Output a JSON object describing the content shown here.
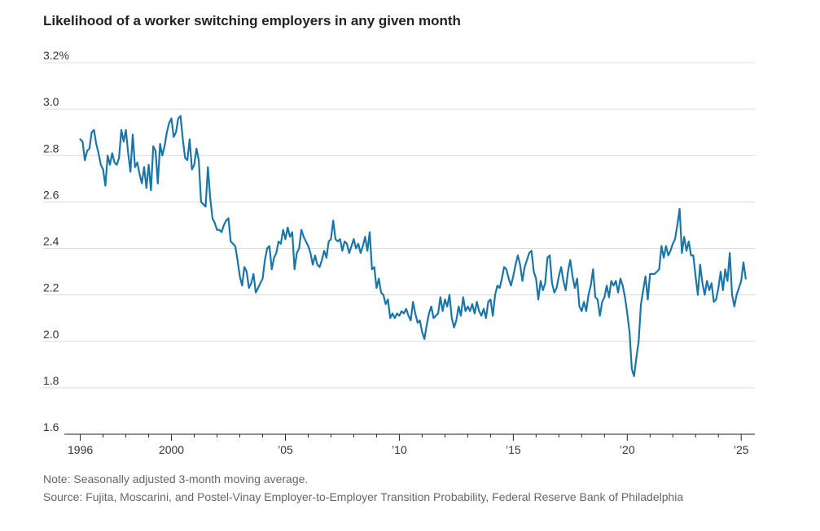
{
  "chart_data": {
    "type": "line",
    "title": "Likelihood of a worker switching employers in any given month",
    "xlabel": "",
    "ylabel": "",
    "ylim": [
      1.6,
      3.2
    ],
    "xlim": [
      1995.8,
      2025.6
    ],
    "grid": true,
    "legend": "none",
    "y_ticks": [
      {
        "value": 3.2,
        "label": "3.2%"
      },
      {
        "value": 3.0,
        "label": "3.0"
      },
      {
        "value": 2.8,
        "label": "2.8"
      },
      {
        "value": 2.6,
        "label": "2.6"
      },
      {
        "value": 2.4,
        "label": "2.4"
      },
      {
        "value": 2.2,
        "label": "2.2"
      },
      {
        "value": 2.0,
        "label": "2.0"
      },
      {
        "value": 1.8,
        "label": "1.8"
      },
      {
        "value": 1.6,
        "label": "1.6"
      }
    ],
    "x_ticks": [
      {
        "value": 1996,
        "label": "1996"
      },
      {
        "value": 2000,
        "label": "2000"
      },
      {
        "value": 2005,
        "label": "’05"
      },
      {
        "value": 2010,
        "label": "’10"
      },
      {
        "value": 2015,
        "label": "’15"
      },
      {
        "value": 2020,
        "label": "’20"
      },
      {
        "value": 2025,
        "label": "’25"
      }
    ],
    "series": [
      {
        "color": "#1a75a8",
        "points": [
          [
            1996.0,
            2.87
          ],
          [
            1996.1,
            2.86
          ],
          [
            1996.2,
            2.78
          ],
          [
            1996.3,
            2.82
          ],
          [
            1996.4,
            2.83
          ],
          [
            1996.5,
            2.9
          ],
          [
            1996.6,
            2.91
          ],
          [
            1996.7,
            2.85
          ],
          [
            1996.8,
            2.81
          ],
          [
            1996.9,
            2.76
          ],
          [
            1997.0,
            2.74
          ],
          [
            1997.1,
            2.67
          ],
          [
            1997.2,
            2.8
          ],
          [
            1997.3,
            2.76
          ],
          [
            1997.4,
            2.81
          ],
          [
            1997.5,
            2.77
          ],
          [
            1997.6,
            2.76
          ],
          [
            1997.7,
            2.79
          ],
          [
            1997.8,
            2.91
          ],
          [
            1997.9,
            2.86
          ],
          [
            1998.0,
            2.91
          ],
          [
            1998.1,
            2.81
          ],
          [
            1998.2,
            2.73
          ],
          [
            1998.3,
            2.89
          ],
          [
            1998.4,
            2.75
          ],
          [
            1998.5,
            2.77
          ],
          [
            1998.6,
            2.72
          ],
          [
            1998.7,
            2.68
          ],
          [
            1998.8,
            2.75
          ],
          [
            1998.9,
            2.66
          ],
          [
            1999.0,
            2.76
          ],
          [
            1999.1,
            2.65
          ],
          [
            1999.2,
            2.84
          ],
          [
            1999.3,
            2.82
          ],
          [
            1999.4,
            2.68
          ],
          [
            1999.5,
            2.85
          ],
          [
            1999.6,
            2.8
          ],
          [
            1999.7,
            2.84
          ],
          [
            1999.8,
            2.9
          ],
          [
            1999.9,
            2.94
          ],
          [
            2000.0,
            2.96
          ],
          [
            2000.1,
            2.88
          ],
          [
            2000.2,
            2.9
          ],
          [
            2000.3,
            2.96
          ],
          [
            2000.4,
            2.97
          ],
          [
            2000.5,
            2.87
          ],
          [
            2000.6,
            2.79
          ],
          [
            2000.7,
            2.78
          ],
          [
            2000.8,
            2.87
          ],
          [
            2000.9,
            2.74
          ],
          [
            2001.0,
            2.76
          ],
          [
            2001.1,
            2.83
          ],
          [
            2001.2,
            2.78
          ],
          [
            2001.3,
            2.6
          ],
          [
            2001.4,
            2.59
          ],
          [
            2001.5,
            2.58
          ],
          [
            2001.6,
            2.75
          ],
          [
            2001.7,
            2.62
          ],
          [
            2001.8,
            2.53
          ],
          [
            2001.9,
            2.51
          ],
          [
            2002.0,
            2.48
          ],
          [
            2002.1,
            2.48
          ],
          [
            2002.2,
            2.47
          ],
          [
            2002.3,
            2.5
          ],
          [
            2002.4,
            2.52
          ],
          [
            2002.5,
            2.53
          ],
          [
            2002.6,
            2.43
          ],
          [
            2002.7,
            2.42
          ],
          [
            2002.8,
            2.41
          ],
          [
            2002.9,
            2.35
          ],
          [
            2003.0,
            2.28
          ],
          [
            2003.1,
            2.24
          ],
          [
            2003.2,
            2.32
          ],
          [
            2003.3,
            2.3
          ],
          [
            2003.4,
            2.23
          ],
          [
            2003.5,
            2.25
          ],
          [
            2003.6,
            2.29
          ],
          [
            2003.7,
            2.21
          ],
          [
            2003.8,
            2.23
          ],
          [
            2003.9,
            2.25
          ],
          [
            2004.0,
            2.27
          ],
          [
            2004.1,
            2.35
          ],
          [
            2004.2,
            2.4
          ],
          [
            2004.3,
            2.41
          ],
          [
            2004.4,
            2.31
          ],
          [
            2004.5,
            2.36
          ],
          [
            2004.6,
            2.38
          ],
          [
            2004.7,
            2.43
          ],
          [
            2004.8,
            2.42
          ],
          [
            2004.9,
            2.48
          ],
          [
            2005.0,
            2.44
          ],
          [
            2005.1,
            2.49
          ],
          [
            2005.2,
            2.45
          ],
          [
            2005.3,
            2.47
          ],
          [
            2005.4,
            2.31
          ],
          [
            2005.5,
            2.38
          ],
          [
            2005.6,
            2.4
          ],
          [
            2005.7,
            2.48
          ],
          [
            2005.8,
            2.45
          ],
          [
            2005.9,
            2.43
          ],
          [
            2006.0,
            2.41
          ],
          [
            2006.1,
            2.38
          ],
          [
            2006.2,
            2.33
          ],
          [
            2006.3,
            2.37
          ],
          [
            2006.4,
            2.33
          ],
          [
            2006.5,
            2.32
          ],
          [
            2006.6,
            2.35
          ],
          [
            2006.7,
            2.39
          ],
          [
            2006.8,
            2.36
          ],
          [
            2006.9,
            2.43
          ],
          [
            2007.0,
            2.44
          ],
          [
            2007.1,
            2.52
          ],
          [
            2007.2,
            2.44
          ],
          [
            2007.3,
            2.43
          ],
          [
            2007.4,
            2.44
          ],
          [
            2007.5,
            2.39
          ],
          [
            2007.6,
            2.43
          ],
          [
            2007.7,
            2.42
          ],
          [
            2007.8,
            2.38
          ],
          [
            2007.9,
            2.41
          ],
          [
            2008.0,
            2.44
          ],
          [
            2008.1,
            2.4
          ],
          [
            2008.2,
            2.42
          ],
          [
            2008.3,
            2.38
          ],
          [
            2008.4,
            2.41
          ],
          [
            2008.5,
            2.45
          ],
          [
            2008.6,
            2.39
          ],
          [
            2008.7,
            2.47
          ],
          [
            2008.8,
            2.31
          ],
          [
            2008.9,
            2.32
          ],
          [
            2009.0,
            2.23
          ],
          [
            2009.1,
            2.27
          ],
          [
            2009.2,
            2.21
          ],
          [
            2009.3,
            2.2
          ],
          [
            2009.4,
            2.16
          ],
          [
            2009.5,
            2.18
          ],
          [
            2009.6,
            2.1
          ],
          [
            2009.7,
            2.12
          ],
          [
            2009.8,
            2.1
          ],
          [
            2009.9,
            2.12
          ],
          [
            2010.0,
            2.11
          ],
          [
            2010.1,
            2.13
          ],
          [
            2010.2,
            2.12
          ],
          [
            2010.3,
            2.14
          ],
          [
            2010.4,
            2.11
          ],
          [
            2010.5,
            2.09
          ],
          [
            2010.6,
            2.17
          ],
          [
            2010.7,
            2.12
          ],
          [
            2010.8,
            2.08
          ],
          [
            2010.9,
            2.09
          ],
          [
            2011.0,
            2.04
          ],
          [
            2011.1,
            2.01
          ],
          [
            2011.2,
            2.07
          ],
          [
            2011.3,
            2.12
          ],
          [
            2011.4,
            2.15
          ],
          [
            2011.5,
            2.1
          ],
          [
            2011.6,
            2.11
          ],
          [
            2011.7,
            2.12
          ],
          [
            2011.8,
            2.19
          ],
          [
            2011.9,
            2.13
          ],
          [
            2012.0,
            2.18
          ],
          [
            2012.1,
            2.15
          ],
          [
            2012.2,
            2.2
          ],
          [
            2012.3,
            2.1
          ],
          [
            2012.4,
            2.06
          ],
          [
            2012.5,
            2.09
          ],
          [
            2012.6,
            2.15
          ],
          [
            2012.7,
            2.11
          ],
          [
            2012.8,
            2.19
          ],
          [
            2012.9,
            2.13
          ],
          [
            2013.0,
            2.15
          ],
          [
            2013.1,
            2.13
          ],
          [
            2013.2,
            2.16
          ],
          [
            2013.3,
            2.12
          ],
          [
            2013.4,
            2.17
          ],
          [
            2013.5,
            2.13
          ],
          [
            2013.6,
            2.11
          ],
          [
            2013.7,
            2.14
          ],
          [
            2013.8,
            2.1
          ],
          [
            2013.9,
            2.17
          ],
          [
            2014.0,
            2.18
          ],
          [
            2014.1,
            2.11
          ],
          [
            2014.2,
            2.2
          ],
          [
            2014.3,
            2.24
          ],
          [
            2014.4,
            2.23
          ],
          [
            2014.5,
            2.27
          ],
          [
            2014.6,
            2.32
          ],
          [
            2014.7,
            2.31
          ],
          [
            2014.8,
            2.27
          ],
          [
            2014.9,
            2.24
          ],
          [
            2015.0,
            2.28
          ],
          [
            2015.1,
            2.33
          ],
          [
            2015.2,
            2.37
          ],
          [
            2015.3,
            2.33
          ],
          [
            2015.4,
            2.26
          ],
          [
            2015.5,
            2.32
          ],
          [
            2015.6,
            2.35
          ],
          [
            2015.7,
            2.38
          ],
          [
            2015.8,
            2.39
          ],
          [
            2015.9,
            2.3
          ],
          [
            2016.0,
            2.27
          ],
          [
            2016.1,
            2.18
          ],
          [
            2016.2,
            2.26
          ],
          [
            2016.3,
            2.22
          ],
          [
            2016.4,
            2.25
          ],
          [
            2016.5,
            2.36
          ],
          [
            2016.6,
            2.37
          ],
          [
            2016.7,
            2.25
          ],
          [
            2016.8,
            2.21
          ],
          [
            2016.9,
            2.23
          ],
          [
            2017.0,
            2.28
          ],
          [
            2017.1,
            2.32
          ],
          [
            2017.2,
            2.26
          ],
          [
            2017.3,
            2.22
          ],
          [
            2017.4,
            2.3
          ],
          [
            2017.5,
            2.35
          ],
          [
            2017.6,
            2.28
          ],
          [
            2017.7,
            2.23
          ],
          [
            2017.8,
            2.27
          ],
          [
            2017.9,
            2.15
          ],
          [
            2018.0,
            2.13
          ],
          [
            2018.1,
            2.17
          ],
          [
            2018.2,
            2.13
          ],
          [
            2018.3,
            2.2
          ],
          [
            2018.4,
            2.24
          ],
          [
            2018.5,
            2.31
          ],
          [
            2018.6,
            2.19
          ],
          [
            2018.7,
            2.18
          ],
          [
            2018.8,
            2.11
          ],
          [
            2018.9,
            2.17
          ],
          [
            2019.0,
            2.19
          ],
          [
            2019.1,
            2.24
          ],
          [
            2019.2,
            2.19
          ],
          [
            2019.3,
            2.26
          ],
          [
            2019.4,
            2.24
          ],
          [
            2019.5,
            2.26
          ],
          [
            2019.6,
            2.21
          ],
          [
            2019.7,
            2.27
          ],
          [
            2019.8,
            2.24
          ],
          [
            2019.9,
            2.19
          ],
          [
            2020.0,
            2.12
          ],
          [
            2020.1,
            2.04
          ],
          [
            2020.2,
            1.88
          ],
          [
            2020.3,
            1.85
          ],
          [
            2020.4,
            1.93
          ],
          [
            2020.5,
            2.0
          ],
          [
            2020.6,
            2.16
          ],
          [
            2020.7,
            2.22
          ],
          [
            2020.8,
            2.28
          ],
          [
            2020.9,
            2.18
          ],
          [
            2021.0,
            2.29
          ],
          [
            2021.1,
            2.29
          ],
          [
            2021.2,
            2.29
          ],
          [
            2021.3,
            2.3
          ],
          [
            2021.4,
            2.31
          ],
          [
            2021.5,
            2.41
          ],
          [
            2021.6,
            2.36
          ],
          [
            2021.7,
            2.41
          ],
          [
            2021.8,
            2.37
          ],
          [
            2021.9,
            2.39
          ],
          [
            2022.0,
            2.42
          ],
          [
            2022.1,
            2.44
          ],
          [
            2022.2,
            2.5
          ],
          [
            2022.3,
            2.57
          ],
          [
            2022.4,
            2.38
          ],
          [
            2022.5,
            2.45
          ],
          [
            2022.6,
            2.39
          ],
          [
            2022.7,
            2.43
          ],
          [
            2022.8,
            2.37
          ],
          [
            2022.9,
            2.37
          ],
          [
            2023.0,
            2.28
          ],
          [
            2023.1,
            2.2
          ],
          [
            2023.2,
            2.33
          ],
          [
            2023.3,
            2.25
          ],
          [
            2023.4,
            2.2
          ],
          [
            2023.5,
            2.26
          ],
          [
            2023.6,
            2.22
          ],
          [
            2023.7,
            2.25
          ],
          [
            2023.8,
            2.17
          ],
          [
            2023.9,
            2.18
          ],
          [
            2024.0,
            2.23
          ],
          [
            2024.1,
            2.3
          ],
          [
            2024.2,
            2.22
          ],
          [
            2024.3,
            2.31
          ],
          [
            2024.4,
            2.26
          ],
          [
            2024.5,
            2.38
          ],
          [
            2024.6,
            2.2
          ],
          [
            2024.7,
            2.15
          ],
          [
            2024.8,
            2.2
          ],
          [
            2024.9,
            2.23
          ],
          [
            2025.0,
            2.26
          ],
          [
            2025.1,
            2.34
          ],
          [
            2025.2,
            2.27
          ]
        ]
      }
    ]
  },
  "notes": {
    "note": "Note: Seasonally adjusted 3-month moving average.",
    "source": "Source: Fujita, Moscarini, and Postel-Vinay Employer-to-Employer Transition Probability, Federal Reserve Bank of Philadelphia"
  }
}
